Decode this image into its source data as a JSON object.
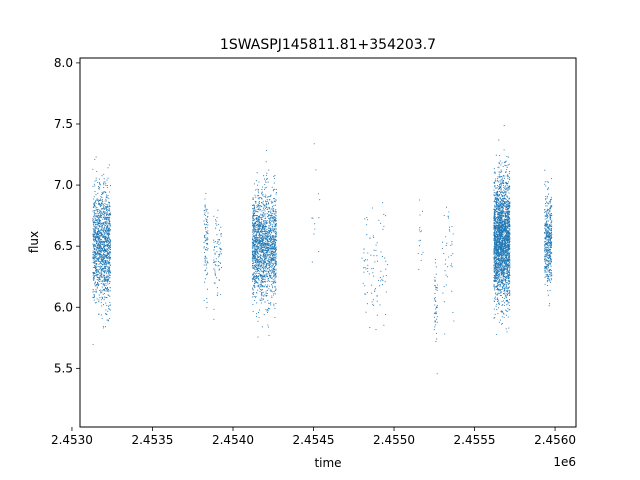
{
  "chart_data": {
    "type": "scatter",
    "title": "1SWASPJ145811.81+354203.7",
    "xlabel": "time",
    "ylabel": "flux",
    "x_offset_label": "1e6",
    "xlim": [
      2453050,
      2456130
    ],
    "ylim": [
      5.02,
      8.04
    ],
    "x_ticks": [
      2453000,
      2453500,
      2454000,
      2454500,
      2455000,
      2455500,
      2456000
    ],
    "x_tick_labels": [
      "2.4530",
      "2.4535",
      "2.4540",
      "2.4545",
      "2.4550",
      "2.4555",
      "2.4560"
    ],
    "y_ticks": [
      5.5,
      6.0,
      6.5,
      7.0,
      7.5,
      8.0
    ],
    "y_tick_labels": [
      "5.5",
      "6.0",
      "6.5",
      "7.0",
      "7.5",
      "8.0"
    ],
    "grid": false,
    "legend": "none",
    "marker_color": "#1f77b4",
    "series": [
      {
        "clusters": [
          {
            "x_start": 2453130,
            "x_end": 2453240,
            "y_center": 6.5,
            "y_spread": 0.42,
            "count": 1300
          },
          {
            "x_start": 2453820,
            "x_end": 2453845,
            "y_center": 6.5,
            "y_spread": 0.35,
            "count": 90
          },
          {
            "x_start": 2453880,
            "x_end": 2453930,
            "y_center": 6.45,
            "y_spread": 0.3,
            "count": 80
          },
          {
            "x_start": 2454120,
            "x_end": 2454270,
            "y_center": 6.5,
            "y_spread": 0.4,
            "count": 1700
          },
          {
            "x_start": 2454480,
            "x_end": 2454540,
            "y_center": 6.7,
            "y_spread": 0.5,
            "count": 12
          },
          {
            "x_start": 2454800,
            "x_end": 2454960,
            "y_center": 6.3,
            "y_spread": 0.45,
            "count": 90
          },
          {
            "x_start": 2455150,
            "x_end": 2455180,
            "y_center": 6.6,
            "y_spread": 0.4,
            "count": 15
          },
          {
            "x_start": 2455250,
            "x_end": 2455270,
            "y_center": 6.05,
            "y_spread": 0.35,
            "count": 50
          },
          {
            "x_start": 2455300,
            "x_end": 2455380,
            "y_center": 6.4,
            "y_spread": 0.45,
            "count": 40
          },
          {
            "x_start": 2455620,
            "x_end": 2455720,
            "y_center": 6.55,
            "y_spread": 0.45,
            "count": 2400
          },
          {
            "x_start": 2455935,
            "x_end": 2455980,
            "y_center": 6.55,
            "y_spread": 0.35,
            "count": 450
          }
        ]
      }
    ]
  }
}
